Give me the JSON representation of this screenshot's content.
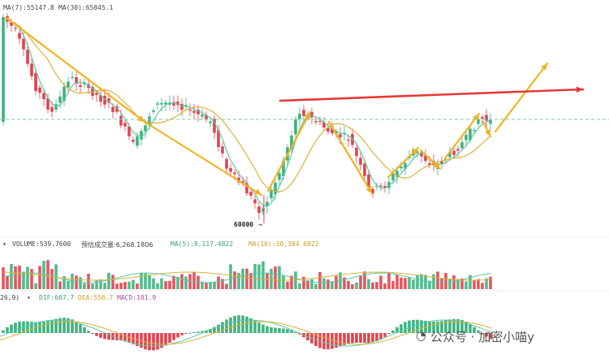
{
  "price_legend": {
    "ma_fast_text": "MA(7):55147.8",
    "ma_slow_text": "MA(30):65845.1"
  },
  "volume_legend": {
    "volume_text": "VOLUME:539.7600",
    "estimate_text": "预估成交量:6,268.1806",
    "ma5_text": "MA(5):8,117.4822",
    "ma10_text": "MA(10):10,304.6822"
  },
  "macd_legend": {
    "params_text": "26,9)",
    "dif_text": "DIF:607.7",
    "dea_text": "DEA:556.7",
    "macd_text": "MACD:101.9"
  },
  "watermark": {
    "text": "公众号 · 加密小喵y"
  },
  "colors": {
    "up": "#3fb27f",
    "down": "#e2424d",
    "ma_fast": "#5ec7a3",
    "ma_slow": "#d8b33a",
    "arrow_gold": "#f0b323",
    "arrow_red": "#e53935",
    "dashed_level": "#7fc9a8"
  },
  "chart_data": [
    {
      "type": "candlestick",
      "pane": "price",
      "title": "",
      "series": [
        {
          "name": "MA(7)",
          "text": "MA(7):55147.8"
        },
        {
          "name": "MA(30)",
          "text": "MA(30):65845.1"
        }
      ],
      "annotations": [
        {
          "text": "60800",
          "type": "low-marker"
        }
      ],
      "trend_arrows_gold": 9,
      "trend_arrow_red": 1,
      "dashed_level": true,
      "grid": false
    },
    {
      "type": "bar",
      "pane": "volume",
      "series": [
        {
          "name": "VOLUME",
          "value": 539.76
        },
        {
          "name": "预估成交量",
          "value": 6268.1806
        },
        {
          "name": "MA(5)",
          "value": 8117.4822
        },
        {
          "name": "MA(10)",
          "value": 10304.6822
        }
      ]
    },
    {
      "type": "bar",
      "pane": "macd",
      "series": [
        {
          "name": "DIF",
          "value": 607.7
        },
        {
          "name": "DEA",
          "value": 556.7
        },
        {
          "name": "MACD",
          "value": 101.9
        }
      ]
    }
  ]
}
